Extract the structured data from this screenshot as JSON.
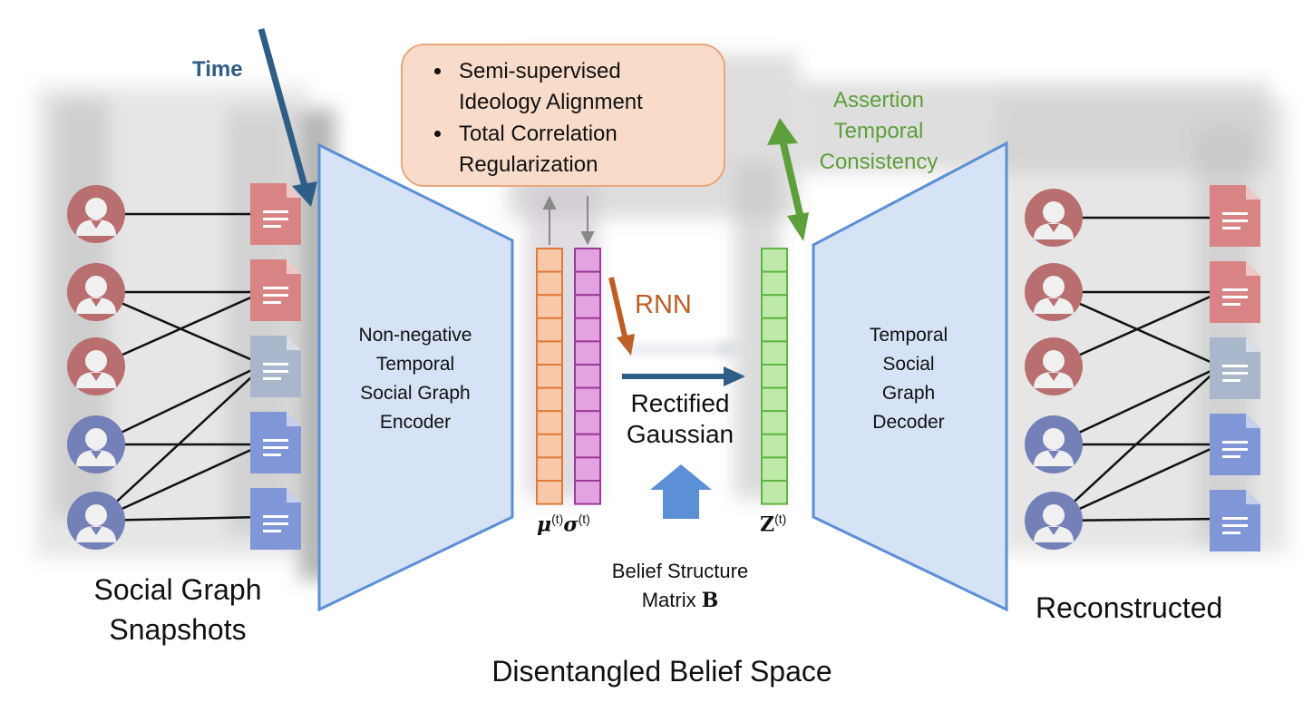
{
  "time_label": "Time",
  "callout": {
    "items": [
      "Semi-supervised Ideology Alignment",
      "Total Correlation Regularization"
    ]
  },
  "encoder": {
    "lines": [
      "Non-negative",
      "Temporal",
      "Social Graph",
      "Encoder"
    ]
  },
  "decoder": {
    "lines": [
      "Temporal",
      "Social",
      "Graph",
      "Decoder"
    ]
  },
  "rnn_label": "RNN",
  "rectified": {
    "lines": [
      "Rectified",
      "Gaussian"
    ]
  },
  "mu_label": "μ",
  "sigma_label": "σ",
  "z_label": "Z",
  "superscript": "(t)",
  "belief": {
    "line1": "Belief Structure",
    "line2_prefix": "Matrix ",
    "line2_symbol": "B"
  },
  "assertion": {
    "lines": [
      "Assertion",
      "Temporal",
      "Consistency"
    ]
  },
  "left_caption": {
    "lines": [
      "Social Graph",
      "Snapshots"
    ]
  },
  "right_caption": "Reconstructed",
  "bottom_caption": "Disentangled Belief Space",
  "colors": {
    "user_red": "#b96f70",
    "user_blue": "#7480b8",
    "doc_red": "#d98484",
    "doc_lightblue": "#a9b6cc",
    "doc_blue": "#8196d6",
    "trapezoid_fill": "#d6e2f5",
    "trapezoid_border": "#5b8fd6",
    "mu_fill": "#f8c9a8",
    "mu_border": "#e07a3a",
    "sigma_fill": "#e3a2e0",
    "sigma_border": "#9b3a9a",
    "z_fill": "#bfe9a8",
    "z_border": "#5fb541",
    "time_arrow": "#2e5d86",
    "rnn": "#c05d24",
    "assertion": "#5d9f3a",
    "up_arrow": "#5b8fd6"
  }
}
